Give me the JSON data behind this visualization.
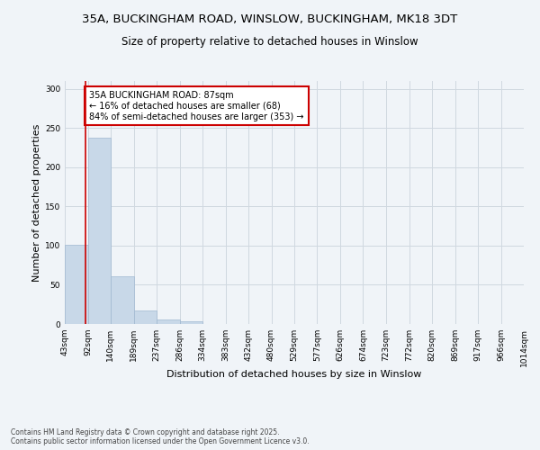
{
  "title_line1": "35A, BUCKINGHAM ROAD, WINSLOW, BUCKINGHAM, MK18 3DT",
  "title_line2": "Size of property relative to detached houses in Winslow",
  "xlabel": "Distribution of detached houses by size in Winslow",
  "ylabel": "Number of detached properties",
  "footer_line1": "Contains HM Land Registry data © Crown copyright and database right 2025.",
  "footer_line2": "Contains public sector information licensed under the Open Government Licence v3.0.",
  "bin_edges": [
    43,
    92,
    140,
    189,
    237,
    286,
    334,
    383,
    432,
    480,
    529,
    577,
    626,
    674,
    723,
    772,
    820,
    869,
    917,
    966,
    1014
  ],
  "bar_heights": [
    101,
    238,
    61,
    17,
    6,
    3,
    0,
    0,
    0,
    0,
    0,
    0,
    0,
    0,
    0,
    0,
    0,
    0,
    0,
    0
  ],
  "bar_color": "#c8d8e8",
  "bar_edge_color": "#a0b8d0",
  "property_size": 87,
  "property_line_color": "#cc0000",
  "annotation_text": "35A BUCKINGHAM ROAD: 87sqm\n← 16% of detached houses are smaller (68)\n84% of semi-detached houses are larger (353) →",
  "annotation_box_color": "#ffffff",
  "annotation_box_edge_color": "#cc0000",
  "ylim": [
    0,
    310
  ],
  "yticks": [
    0,
    50,
    100,
    150,
    200,
    250,
    300
  ],
  "grid_color": "#d0d8e0",
  "background_color": "#f0f4f8",
  "title_fontsize": 9.5,
  "subtitle_fontsize": 8.5,
  "tick_label_fontsize": 6.5,
  "axis_label_fontsize": 8,
  "annotation_fontsize": 7,
  "footer_fontsize": 5.5
}
